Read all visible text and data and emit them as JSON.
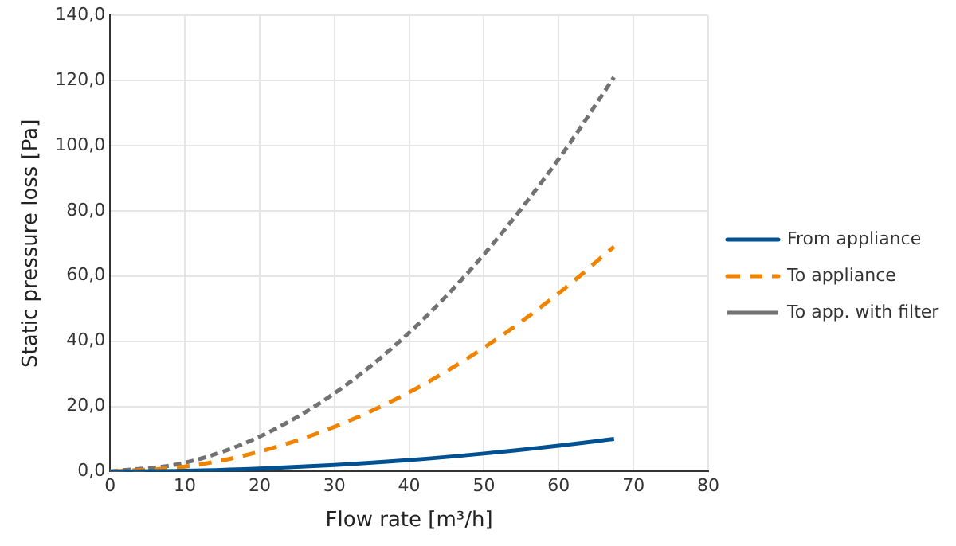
{
  "chart_data": {
    "type": "line",
    "xlabel": "Flow rate [m³/h]",
    "ylabel": "Static pressure loss [Pa]",
    "x": [
      0,
      10,
      20,
      30,
      40,
      50,
      60,
      67.4
    ],
    "xlim": [
      0,
      80
    ],
    "xticks": [
      0,
      10,
      20,
      30,
      40,
      50,
      60,
      70,
      80
    ],
    "ylim": [
      0,
      140
    ],
    "yticks": [
      {
        "value": 0,
        "label": "0,0"
      },
      {
        "value": 20,
        "label": "20,0"
      },
      {
        "value": 40,
        "label": "40,0"
      },
      {
        "value": 60,
        "label": "60,0"
      },
      {
        "value": 80,
        "label": "80,0"
      },
      {
        "value": 100,
        "label": "100,0"
      },
      {
        "value": 120,
        "label": "120,0"
      },
      {
        "value": 140,
        "label": "140,0"
      }
    ],
    "grid": true,
    "legend": "right",
    "marker": "none",
    "series": [
      {
        "name": "From appliance",
        "color": "#005191",
        "line_style": "solid",
        "values": [
          0,
          0.2,
          0.9,
          2.0,
          3.5,
          5.5,
          7.9,
          10.0
        ]
      },
      {
        "name": "To appliance",
        "color": "#f08300",
        "line_style": "dashed",
        "values": [
          0,
          1.5,
          6.1,
          13.7,
          24.3,
          38.0,
          54.7,
          69.0
        ]
      },
      {
        "name": "To app. with filter",
        "color": "#727272",
        "line_style": "dotted",
        "values": [
          0,
          2.7,
          10.7,
          24.0,
          42.6,
          66.6,
          95.9,
          121.0
        ]
      }
    ]
  }
}
